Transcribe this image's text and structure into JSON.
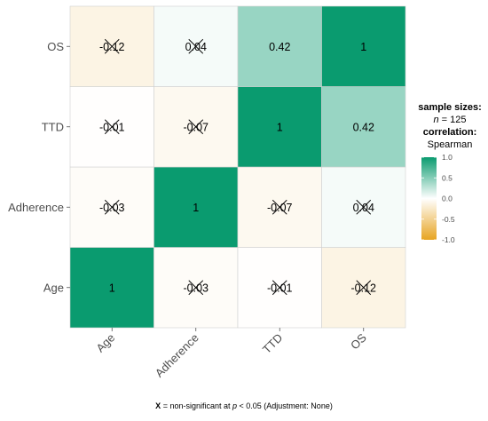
{
  "chart_data": {
    "type": "heatmap",
    "title": "",
    "variables": [
      "Age",
      "Adherence",
      "TTD",
      "OS"
    ],
    "x_labels": [
      "Age",
      "Adherence",
      "TTD",
      "OS"
    ],
    "y_labels": [
      "Age",
      "Adherence",
      "TTD",
      "OS"
    ],
    "matrix": [
      [
        1,
        -0.03,
        -0.01,
        -0.12
      ],
      [
        -0.03,
        1,
        -0.07,
        0.04
      ],
      [
        -0.01,
        -0.07,
        1,
        0.42
      ],
      [
        -0.12,
        0.04,
        0.42,
        1
      ]
    ],
    "display_values": [
      [
        "1",
        "-0.03",
        "-0.01",
        "-0.12"
      ],
      [
        "-0.03",
        "1",
        "-0.07",
        "0.04"
      ],
      [
        "-0.01",
        "-0.07",
        "1",
        "0.42"
      ],
      [
        "-0.12",
        "0.04",
        "0.42",
        "1"
      ]
    ],
    "non_significant": [
      [
        false,
        true,
        true,
        true
      ],
      [
        true,
        false,
        true,
        true
      ],
      [
        true,
        true,
        false,
        false
      ],
      [
        true,
        true,
        false,
        false
      ]
    ],
    "legend": {
      "line1": "sample sizes:",
      "n_label": "n",
      "n_value": "= 125",
      "line3": "correlation:",
      "line4": "Spearman",
      "ticks": [
        "1.0",
        "0.5",
        "0.0",
        "-0.5",
        "-1.0"
      ],
      "tick_values": [
        1.0,
        0.5,
        0.0,
        -0.5,
        -1.0
      ],
      "position": "right"
    },
    "colors": {
      "high": "#0a9b6f",
      "mid": "#ffffff",
      "low": "#e7a422"
    },
    "range": [
      -1,
      1
    ]
  },
  "caption": {
    "mark": "X",
    "text_before": " = non-significant at ",
    "p": "p",
    "text_after": " < 0.05 (Adjustment: None)"
  }
}
